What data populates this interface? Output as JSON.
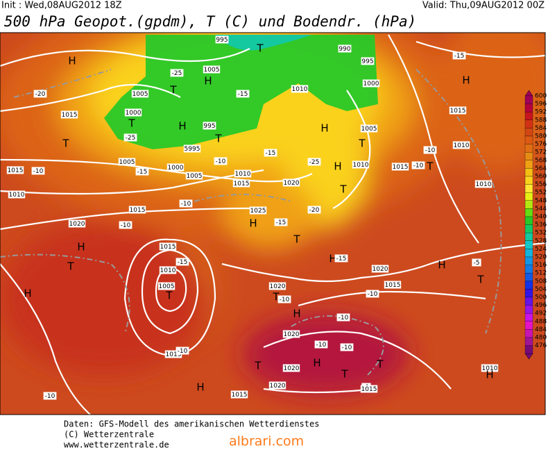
{
  "header": {
    "init": "Init : Wed,08AUG2012 18Z",
    "valid": "Valid: Thu,09AUG2012 00Z",
    "title": "500 hPa Geopot.(gpdm), T (C) und Bodendr. (hPa)"
  },
  "colorbar": {
    "labels": [
      600,
      596,
      592,
      588,
      584,
      580,
      576,
      572,
      568,
      564,
      560,
      556,
      552,
      548,
      544,
      540,
      536,
      532,
      528,
      524,
      520,
      516,
      512,
      508,
      504,
      500,
      496,
      492,
      488,
      484,
      480,
      476
    ],
    "colors": [
      "#a0005a",
      "#b4003c",
      "#c8141e",
      "#d23214",
      "#d24614",
      "#dc5a14",
      "#e06e14",
      "#e68c14",
      "#f0a014",
      "#f5be14",
      "#fad21e",
      "#ffe632",
      "#e6f014",
      "#b4e614",
      "#64dc14",
      "#28c828",
      "#14c864",
      "#14c8a0",
      "#14c8c8",
      "#14b4dc",
      "#1496e6",
      "#147ae6",
      "#145ae6",
      "#1432e6",
      "#3214e6",
      "#6414e6",
      "#9614e6",
      "#c814e6",
      "#e614c8",
      "#c814b4",
      "#a01496",
      "#780a78"
    ]
  },
  "map_labels": [
    "H",
    "T",
    "995",
    "990",
    "995",
    "T",
    "H",
    "1005",
    "1005",
    "1000",
    "T",
    "-25",
    "H",
    "995",
    "T",
    "5995",
    "-25",
    "-15",
    "1010",
    "1000",
    "1015",
    "-20",
    "T",
    "1015",
    "-10",
    "1005",
    "-15",
    "1000",
    "1005",
    "-10",
    "1010",
    "1015",
    "-15",
    "H",
    "1005",
    "T",
    "H",
    "1010",
    "-25",
    "1020",
    "T",
    "1015",
    "-10",
    "T",
    "1010",
    "-10",
    "H",
    "1015",
    "-15",
    "1010",
    "1010",
    "1015",
    "-10",
    "1020",
    "-10",
    "1025",
    "H",
    "-15",
    "T",
    "-20",
    "H",
    "T",
    "1015",
    "-15",
    "1010",
    "1005",
    "T",
    "H",
    "H",
    "-15",
    "1020",
    "1015",
    "-10",
    "H",
    "-5",
    "T",
    "1020",
    "T",
    "-10",
    "H",
    "-10",
    "1020",
    "-10",
    "-10",
    "H",
    "T",
    "1020",
    "T",
    "-1",
    "1015",
    "T",
    "1020",
    "H",
    "1015",
    "-10",
    "-10",
    "1015",
    "1010",
    "H"
  ],
  "footer": {
    "lines": [
      "Daten: GFS-Modell des amerikanischen Wetterdienstes",
      "(C) Wetterzentrale",
      "www.wetterzentrale.de"
    ],
    "watermark": "albrari.com"
  }
}
